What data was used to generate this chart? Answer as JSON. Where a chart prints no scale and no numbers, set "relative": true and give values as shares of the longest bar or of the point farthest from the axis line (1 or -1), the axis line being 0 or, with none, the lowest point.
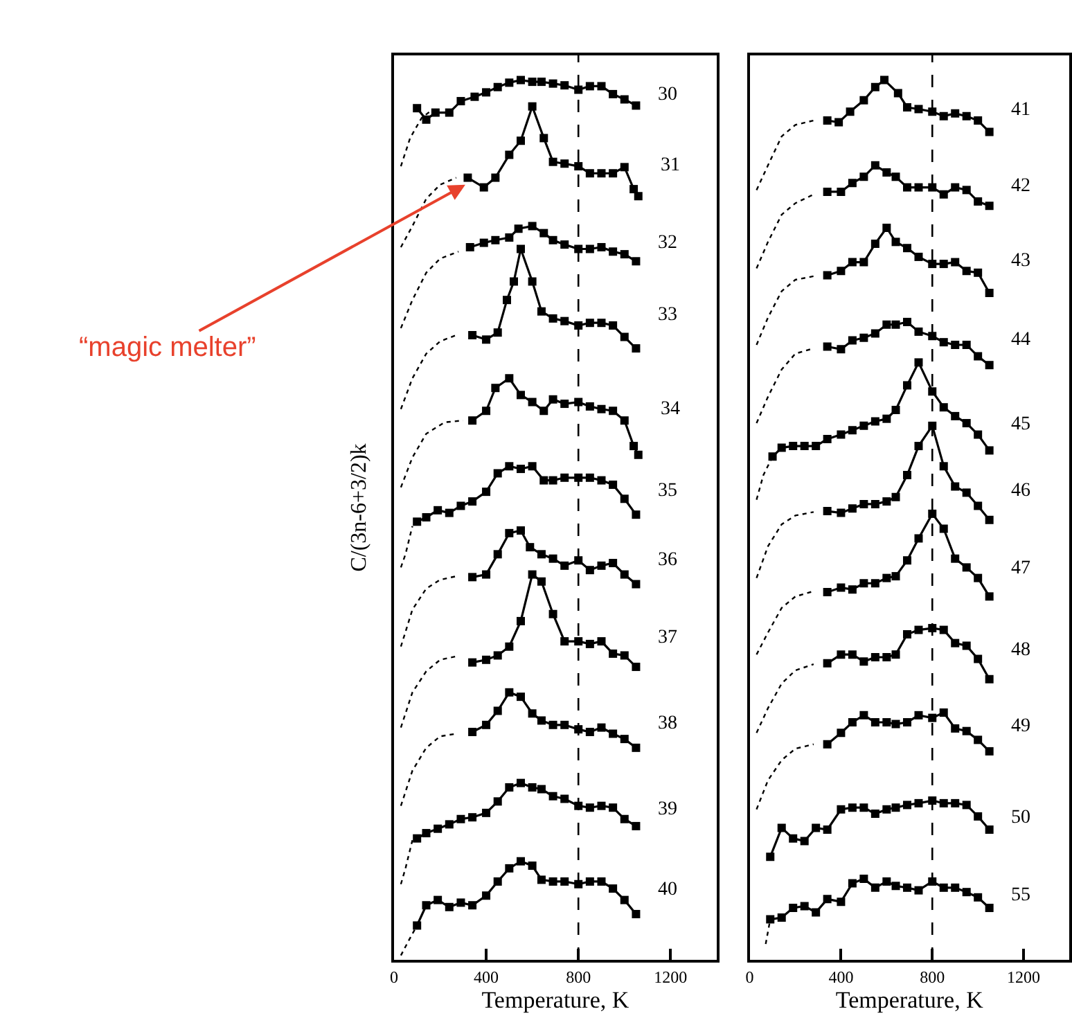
{
  "chart_data": [
    {
      "type": "line",
      "relative": true,
      "xlabel": "Temperature, K",
      "ylabel": "C/(3n-6+3/2)k",
      "xlim": [
        0,
        1400
      ],
      "xticks": [
        0,
        400,
        800,
        1200
      ],
      "marker": "square",
      "line_style": "solid",
      "ref_lines": [
        {
          "axis": "x",
          "value": 800,
          "line_style": "dashed"
        }
      ],
      "annotations": [
        "“magic melter”"
      ],
      "series": [
        {
          "name": "30",
          "color": "#000000",
          "x": [
            100,
            140,
            180,
            240,
            290,
            350,
            400,
            450,
            500,
            550,
            600,
            640,
            690,
            740,
            800,
            850,
            900,
            950,
            1000,
            1050
          ],
          "values": [
            0.968,
            0.955,
            0.963,
            0.963,
            0.976,
            0.981,
            0.986,
            0.992,
            0.997,
            1.0,
            0.998,
            0.998,
            0.996,
            0.994,
            0.989,
            0.993,
            0.993,
            0.984,
            0.978,
            0.971
          ]
        },
        {
          "color": "#000000",
          "line_style": "dotted",
          "marker": "none",
          "x": [
            30,
            70,
            120,
            160
          ],
          "values": [
            0.902,
            0.934,
            0.957,
            0.965
          ]
        },
        {
          "name": "31",
          "color": "#000000",
          "x": [
            320,
            390,
            440,
            500,
            550,
            600,
            650,
            690,
            740,
            800,
            850,
            900,
            950,
            1000,
            1040,
            1060
          ],
          "values": [
            0.889,
            0.878,
            0.889,
            0.915,
            0.931,
            0.97,
            0.934,
            0.907,
            0.905,
            0.902,
            0.894,
            0.894,
            0.894,
            0.901,
            0.876,
            0.868
          ]
        },
        {
          "color": "#000000",
          "line_style": "dotted",
          "marker": "none",
          "x": [
            30,
            80,
            140,
            200,
            270
          ],
          "values": [
            0.81,
            0.834,
            0.865,
            0.881,
            0.889
          ]
        },
        {
          "name": "32",
          "color": "#000000",
          "x": [
            330,
            390,
            440,
            500,
            540,
            600,
            650,
            690,
            740,
            800,
            850,
            900,
            950,
            1000,
            1050
          ],
          "values": [
            0.81,
            0.815,
            0.818,
            0.821,
            0.831,
            0.834,
            0.826,
            0.818,
            0.813,
            0.808,
            0.808,
            0.81,
            0.805,
            0.802,
            0.794
          ]
        },
        {
          "color": "#000000",
          "line_style": "dotted",
          "marker": "none",
          "x": [
            30,
            80,
            140,
            200,
            280
          ],
          "values": [
            0.718,
            0.75,
            0.781,
            0.797,
            0.805
          ]
        },
        {
          "name": "33",
          "color": "#000000",
          "x": [
            340,
            400,
            450,
            490,
            520,
            550,
            600,
            640,
            690,
            740,
            800,
            850,
            900,
            950,
            1000,
            1050
          ],
          "values": [
            0.71,
            0.705,
            0.713,
            0.75,
            0.771,
            0.808,
            0.771,
            0.737,
            0.729,
            0.726,
            0.721,
            0.724,
            0.724,
            0.721,
            0.708,
            0.695
          ]
        },
        {
          "color": "#000000",
          "line_style": "dotted",
          "marker": "none",
          "x": [
            30,
            80,
            140,
            200,
            270
          ],
          "values": [
            0.626,
            0.661,
            0.689,
            0.703,
            0.71
          ]
        },
        {
          "name": "34",
          "color": "#000000",
          "x": [
            340,
            400,
            440,
            500,
            550,
            600,
            650,
            690,
            740,
            800,
            850,
            900,
            950,
            1000,
            1040,
            1060
          ],
          "values": [
            0.613,
            0.624,
            0.65,
            0.661,
            0.642,
            0.634,
            0.624,
            0.637,
            0.632,
            0.634,
            0.629,
            0.626,
            0.624,
            0.613,
            0.584,
            0.574
          ]
        },
        {
          "color": "#000000",
          "line_style": "dotted",
          "marker": "none",
          "x": [
            30,
            80,
            140,
            220,
            300
          ],
          "values": [
            0.537,
            0.571,
            0.598,
            0.611,
            0.613
          ]
        },
        {
          "name": "35",
          "color": "#000000",
          "x": [
            100,
            140,
            190,
            240,
            290,
            340,
            400,
            450,
            500,
            550,
            600,
            650,
            690,
            740,
            800,
            850,
            900,
            950,
            1000,
            1050
          ],
          "values": [
            0.498,
            0.503,
            0.511,
            0.508,
            0.516,
            0.521,
            0.532,
            0.553,
            0.561,
            0.558,
            0.561,
            0.545,
            0.545,
            0.548,
            0.548,
            0.548,
            0.545,
            0.54,
            0.524,
            0.506
          ]
        },
        {
          "color": "#000000",
          "line_style": "dotted",
          "marker": "none",
          "x": [
            30,
            50,
            80
          ],
          "values": [
            0.446,
            0.461,
            0.493
          ]
        },
        {
          "name": "36",
          "color": "#000000",
          "x": [
            340,
            400,
            450,
            500,
            550,
            590,
            640,
            690,
            740,
            800,
            850,
            900,
            950,
            1000,
            1050
          ],
          "values": [
            0.435,
            0.438,
            0.461,
            0.485,
            0.488,
            0.469,
            0.461,
            0.456,
            0.448,
            0.454,
            0.443,
            0.448,
            0.451,
            0.438,
            0.427
          ]
        },
        {
          "color": "#000000",
          "line_style": "dotted",
          "marker": "none",
          "x": [
            30,
            80,
            140,
            200,
            270
          ],
          "values": [
            0.356,
            0.398,
            0.422,
            0.432,
            0.436
          ]
        },
        {
          "name": "37",
          "color": "#000000",
          "x": [
            340,
            400,
            450,
            500,
            550,
            600,
            640,
            690,
            740,
            800,
            850,
            900,
            950,
            1000,
            1050
          ],
          "values": [
            0.338,
            0.341,
            0.346,
            0.356,
            0.385,
            0.438,
            0.43,
            0.393,
            0.362,
            0.362,
            0.359,
            0.362,
            0.348,
            0.346,
            0.333
          ]
        },
        {
          "color": "#000000",
          "line_style": "dotted",
          "marker": "none",
          "x": [
            30,
            80,
            140,
            200,
            270
          ],
          "values": [
            0.264,
            0.304,
            0.328,
            0.341,
            0.345
          ]
        },
        {
          "name": "38",
          "color": "#000000",
          "x": [
            340,
            400,
            450,
            500,
            550,
            600,
            640,
            690,
            740,
            800,
            850,
            900,
            950,
            1000,
            1050
          ],
          "values": [
            0.259,
            0.267,
            0.283,
            0.304,
            0.299,
            0.28,
            0.272,
            0.267,
            0.267,
            0.262,
            0.259,
            0.264,
            0.257,
            0.251,
            0.241
          ]
        },
        {
          "color": "#000000",
          "line_style": "dotted",
          "marker": "none",
          "x": [
            30,
            80,
            140,
            200,
            270
          ],
          "values": [
            0.175,
            0.215,
            0.241,
            0.254,
            0.257
          ]
        },
        {
          "name": "39",
          "color": "#000000",
          "x": [
            100,
            140,
            190,
            240,
            290,
            340,
            400,
            450,
            500,
            550,
            600,
            640,
            690,
            740,
            800,
            850,
            900,
            950,
            1000,
            1050
          ],
          "values": [
            0.138,
            0.144,
            0.149,
            0.154,
            0.16,
            0.162,
            0.167,
            0.18,
            0.196,
            0.201,
            0.196,
            0.194,
            0.186,
            0.183,
            0.175,
            0.173,
            0.175,
            0.173,
            0.16,
            0.152
          ]
        },
        {
          "color": "#000000",
          "line_style": "dotted",
          "marker": "none",
          "x": [
            30,
            50,
            80
          ],
          "values": [
            0.086,
            0.104,
            0.136
          ]
        },
        {
          "name": "40",
          "color": "#000000",
          "x": [
            100,
            140,
            190,
            240,
            290,
            340,
            400,
            450,
            500,
            550,
            600,
            640,
            690,
            740,
            800,
            850,
            900,
            950,
            1000,
            1050
          ],
          "values": [
            0.039,
            0.062,
            0.068,
            0.06,
            0.065,
            0.062,
            0.073,
            0.089,
            0.104,
            0.112,
            0.107,
            0.091,
            0.089,
            0.089,
            0.086,
            0.089,
            0.089,
            0.081,
            0.068,
            0.052
          ]
        },
        {
          "color": "#000000",
          "line_style": "dotted",
          "marker": "none",
          "x": [
            30,
            60,
            100
          ],
          "values": [
            0.005,
            0.02,
            0.039
          ]
        }
      ]
    },
    {
      "type": "line",
      "relative": true,
      "xlabel": "Temperature, K",
      "xlim": [
        0,
        1400
      ],
      "xticks": [
        0,
        400,
        800,
        1200
      ],
      "marker": "square",
      "line_style": "solid",
      "ref_lines": [
        {
          "axis": "x",
          "value": 800,
          "line_style": "dashed"
        }
      ],
      "series": [
        {
          "name": "41",
          "color": "#000000",
          "x": [
            340,
            390,
            440,
            500,
            550,
            590,
            650,
            690,
            740,
            800,
            850,
            900,
            950,
            1000,
            1050
          ],
          "values": [
            0.954,
            0.952,
            0.964,
            0.977,
            0.992,
            1.0,
            0.985,
            0.969,
            0.967,
            0.964,
            0.959,
            0.962,
            0.959,
            0.954,
            0.941
          ]
        },
        {
          "color": "#000000",
          "line_style": "dotted",
          "marker": "none",
          "x": [
            30,
            80,
            140,
            200,
            280
          ],
          "values": [
            0.875,
            0.903,
            0.936,
            0.949,
            0.954
          ]
        },
        {
          "name": "42",
          "color": "#000000",
          "x": [
            340,
            400,
            450,
            500,
            550,
            600,
            640,
            690,
            740,
            800,
            850,
            900,
            950,
            1000,
            1050
          ],
          "values": [
            0.873,
            0.873,
            0.883,
            0.89,
            0.903,
            0.895,
            0.89,
            0.878,
            0.878,
            0.878,
            0.87,
            0.878,
            0.875,
            0.862,
            0.857
          ]
        },
        {
          "color": "#000000",
          "line_style": "dotted",
          "marker": "none",
          "x": [
            30,
            80,
            140,
            200,
            280
          ],
          "values": [
            0.786,
            0.816,
            0.847,
            0.86,
            0.87
          ]
        },
        {
          "name": "43",
          "color": "#000000",
          "x": [
            340,
            400,
            450,
            500,
            550,
            600,
            640,
            690,
            740,
            800,
            850,
            900,
            950,
            1000,
            1050
          ],
          "values": [
            0.778,
            0.783,
            0.793,
            0.793,
            0.814,
            0.832,
            0.816,
            0.809,
            0.799,
            0.791,
            0.791,
            0.793,
            0.783,
            0.781,
            0.758
          ]
        },
        {
          "color": "#000000",
          "line_style": "dotted",
          "marker": "none",
          "x": [
            30,
            80,
            140,
            200,
            280
          ],
          "values": [
            0.699,
            0.73,
            0.76,
            0.773,
            0.777
          ]
        },
        {
          "name": "44",
          "color": "#000000",
          "x": [
            340,
            400,
            450,
            500,
            550,
            600,
            640,
            690,
            740,
            800,
            850,
            900,
            950,
            1000,
            1050
          ],
          "values": [
            0.697,
            0.694,
            0.704,
            0.707,
            0.712,
            0.722,
            0.722,
            0.725,
            0.714,
            0.709,
            0.702,
            0.699,
            0.699,
            0.686,
            0.676
          ]
        },
        {
          "color": "#000000",
          "line_style": "dotted",
          "marker": "none",
          "x": [
            30,
            80,
            140,
            200,
            280
          ],
          "values": [
            0.61,
            0.64,
            0.671,
            0.689,
            0.695
          ]
        },
        {
          "name": "45",
          "color": "#000000",
          "x": [
            100,
            140,
            190,
            240,
            290,
            340,
            400,
            450,
            500,
            550,
            600,
            640,
            690,
            740,
            800,
            850,
            900,
            950,
            1000,
            1050
          ],
          "values": [
            0.572,
            0.582,
            0.584,
            0.584,
            0.584,
            0.592,
            0.597,
            0.602,
            0.607,
            0.612,
            0.615,
            0.625,
            0.653,
            0.679,
            0.646,
            0.628,
            0.618,
            0.61,
            0.597,
            0.579
          ]
        },
        {
          "color": "#000000",
          "line_style": "dotted",
          "marker": "none",
          "x": [
            30,
            60,
            100
          ],
          "values": [
            0.523,
            0.551,
            0.572
          ]
        },
        {
          "name": "46",
          "color": "#000000",
          "x": [
            340,
            400,
            450,
            500,
            550,
            600,
            640,
            690,
            740,
            800,
            850,
            900,
            950,
            1000,
            1050
          ],
          "values": [
            0.51,
            0.508,
            0.513,
            0.518,
            0.518,
            0.521,
            0.526,
            0.551,
            0.584,
            0.607,
            0.561,
            0.538,
            0.531,
            0.516,
            0.5
          ]
        },
        {
          "color": "#000000",
          "line_style": "dotted",
          "marker": "none",
          "x": [
            30,
            80,
            140,
            200,
            280
          ],
          "values": [
            0.434,
            0.47,
            0.495,
            0.505,
            0.509
          ]
        },
        {
          "name": "47",
          "color": "#000000",
          "x": [
            340,
            400,
            450,
            500,
            550,
            600,
            640,
            690,
            740,
            800,
            850,
            900,
            950,
            1000,
            1050
          ],
          "values": [
            0.418,
            0.423,
            0.421,
            0.428,
            0.428,
            0.434,
            0.436,
            0.454,
            0.479,
            0.507,
            0.49,
            0.456,
            0.446,
            0.434,
            0.413
          ]
        },
        {
          "color": "#000000",
          "line_style": "dotted",
          "marker": "none",
          "x": [
            30,
            80,
            140,
            200,
            280
          ],
          "values": [
            0.347,
            0.372,
            0.4,
            0.413,
            0.419
          ]
        },
        {
          "name": "48",
          "color": "#000000",
          "x": [
            340,
            400,
            450,
            500,
            550,
            600,
            640,
            690,
            740,
            800,
            850,
            900,
            950,
            1000,
            1050
          ],
          "values": [
            0.337,
            0.347,
            0.347,
            0.339,
            0.344,
            0.344,
            0.347,
            0.37,
            0.375,
            0.377,
            0.375,
            0.36,
            0.357,
            0.342,
            0.319
          ]
        },
        {
          "color": "#000000",
          "line_style": "dotted",
          "marker": "none",
          "x": [
            30,
            80,
            140,
            200,
            280
          ],
          "values": [
            0.258,
            0.286,
            0.314,
            0.329,
            0.336
          ]
        },
        {
          "name": "49",
          "color": "#000000",
          "x": [
            340,
            400,
            450,
            500,
            550,
            600,
            640,
            690,
            740,
            800,
            850,
            900,
            950,
            1000,
            1050
          ],
          "values": [
            0.245,
            0.258,
            0.27,
            0.278,
            0.27,
            0.27,
            0.268,
            0.27,
            0.278,
            0.275,
            0.281,
            0.263,
            0.26,
            0.25,
            0.237
          ]
        },
        {
          "color": "#000000",
          "line_style": "dotted",
          "marker": "none",
          "x": [
            30,
            80,
            140,
            200,
            280
          ],
          "values": [
            0.171,
            0.204,
            0.227,
            0.24,
            0.245
          ]
        },
        {
          "name": "50",
          "color": "#000000",
          "x": [
            90,
            140,
            190,
            240,
            290,
            340,
            400,
            450,
            500,
            550,
            600,
            640,
            690,
            740,
            800,
            850,
            900,
            950,
            1000,
            1050
          ],
          "values": [
            0.117,
            0.15,
            0.138,
            0.135,
            0.15,
            0.148,
            0.171,
            0.173,
            0.173,
            0.166,
            0.171,
            0.173,
            0.176,
            0.178,
            0.181,
            0.178,
            0.178,
            0.176,
            0.163,
            0.148
          ]
        },
        {
          "name": "55",
          "color": "#000000",
          "x": [
            90,
            140,
            190,
            240,
            290,
            340,
            400,
            450,
            500,
            550,
            600,
            640,
            690,
            740,
            800,
            850,
            900,
            950,
            1000,
            1050
          ],
          "values": [
            0.046,
            0.048,
            0.059,
            0.061,
            0.054,
            0.069,
            0.066,
            0.087,
            0.092,
            0.082,
            0.089,
            0.084,
            0.082,
            0.079,
            0.089,
            0.082,
            0.082,
            0.077,
            0.071,
            0.059
          ]
        },
        {
          "color": "#000000",
          "line_style": "dotted",
          "marker": "none",
          "x": [
            70,
            90
          ],
          "values": [
            0.018,
            0.046
          ]
        }
      ]
    }
  ]
}
